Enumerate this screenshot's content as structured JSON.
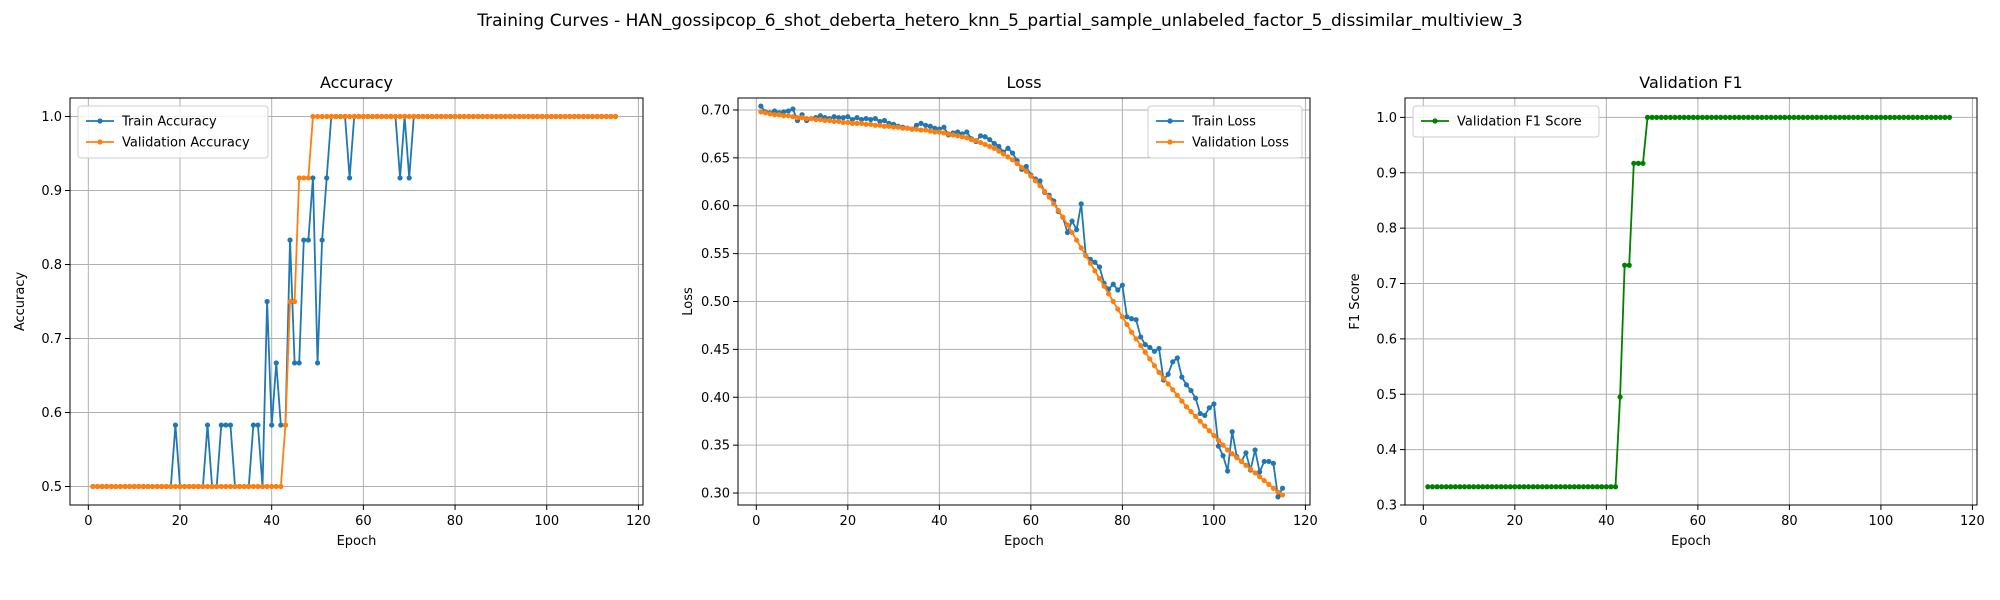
{
  "figure": {
    "suptitle": "Training Curves - HAN_gossipcop_6_shot_deberta_hetero_knn_5_partial_sample_unlabeled_factor_5_dissimilar_multiview_3"
  },
  "colors": {
    "blue": "#1f77b4",
    "orange": "#ff7f0e",
    "green": "#008000",
    "grid": "#b0b0b0"
  },
  "chart_data": [
    {
      "type": "line",
      "title": "Accuracy",
      "xlabel": "Epoch",
      "ylabel": "Accuracy",
      "xlim": [
        -4,
        121
      ],
      "ylim": [
        0.475,
        1.025
      ],
      "xticks": [
        0,
        20,
        40,
        60,
        80,
        100,
        120
      ],
      "yticks": [
        0.5,
        0.6,
        0.7,
        0.8,
        0.9,
        1.0
      ],
      "ytick_labels": [
        "0.5",
        "0.6",
        "0.7",
        "0.8",
        "0.9",
        "1.0"
      ],
      "grid": true,
      "legend": "upper-left",
      "series": [
        {
          "name": "Train Accuracy",
          "color": "#1f77b4",
          "x_start": 1,
          "values": [
            0.5,
            0.5,
            0.5,
            0.5,
            0.5,
            0.5,
            0.5,
            0.5,
            0.5,
            0.5,
            0.5,
            0.5,
            0.5,
            0.5,
            0.5,
            0.5,
            0.5,
            0.5,
            0.583,
            0.5,
            0.5,
            0.5,
            0.5,
            0.5,
            0.5,
            0.583,
            0.5,
            0.5,
            0.583,
            0.583,
            0.583,
            0.5,
            0.5,
            0.5,
            0.5,
            0.583,
            0.583,
            0.5,
            0.75,
            0.583,
            0.667,
            0.583,
            0.583,
            0.833,
            0.667,
            0.667,
            0.833,
            0.833,
            0.917,
            0.667,
            0.833,
            0.917,
            1.0,
            1.0,
            1.0,
            1.0,
            0.917,
            1.0,
            1.0,
            1.0,
            1.0,
            1.0,
            1.0,
            1.0,
            1.0,
            1.0,
            1.0,
            0.917,
            1.0,
            0.917,
            1.0,
            1.0,
            1.0,
            1.0,
            1.0,
            1.0,
            1.0,
            1.0,
            1.0,
            1.0,
            1.0,
            1.0,
            1.0,
            1.0,
            1.0,
            1.0,
            1.0,
            1.0,
            1.0,
            1.0,
            1.0,
            1.0,
            1.0,
            1.0,
            1.0,
            1.0,
            1.0,
            1.0,
            1.0,
            1.0,
            1.0,
            1.0,
            1.0,
            1.0,
            1.0,
            1.0,
            1.0,
            1.0,
            1.0,
            1.0,
            1.0,
            1.0,
            1.0,
            1.0,
            1.0
          ]
        },
        {
          "name": "Validation Accuracy",
          "color": "#ff7f0e",
          "x_start": 1,
          "values": [
            0.5,
            0.5,
            0.5,
            0.5,
            0.5,
            0.5,
            0.5,
            0.5,
            0.5,
            0.5,
            0.5,
            0.5,
            0.5,
            0.5,
            0.5,
            0.5,
            0.5,
            0.5,
            0.5,
            0.5,
            0.5,
            0.5,
            0.5,
            0.5,
            0.5,
            0.5,
            0.5,
            0.5,
            0.5,
            0.5,
            0.5,
            0.5,
            0.5,
            0.5,
            0.5,
            0.5,
            0.5,
            0.5,
            0.5,
            0.5,
            0.5,
            0.5,
            0.583,
            0.75,
            0.75,
            0.917,
            0.917,
            0.917,
            1.0,
            1.0,
            1.0,
            1.0,
            1.0,
            1.0,
            1.0,
            1.0,
            1.0,
            1.0,
            1.0,
            1.0,
            1.0,
            1.0,
            1.0,
            1.0,
            1.0,
            1.0,
            1.0,
            1.0,
            1.0,
            1.0,
            1.0,
            1.0,
            1.0,
            1.0,
            1.0,
            1.0,
            1.0,
            1.0,
            1.0,
            1.0,
            1.0,
            1.0,
            1.0,
            1.0,
            1.0,
            1.0,
            1.0,
            1.0,
            1.0,
            1.0,
            1.0,
            1.0,
            1.0,
            1.0,
            1.0,
            1.0,
            1.0,
            1.0,
            1.0,
            1.0,
            1.0,
            1.0,
            1.0,
            1.0,
            1.0,
            1.0,
            1.0,
            1.0,
            1.0,
            1.0,
            1.0,
            1.0,
            1.0,
            1.0,
            1.0
          ]
        }
      ]
    },
    {
      "type": "line",
      "title": "Loss",
      "xlabel": "Epoch",
      "ylabel": "Loss",
      "xlim": [
        -4,
        121
      ],
      "ylim": [
        0.2875,
        0.7125
      ],
      "xticks": [
        0,
        20,
        40,
        60,
        80,
        100,
        120
      ],
      "yticks": [
        0.3,
        0.35,
        0.4,
        0.45,
        0.5,
        0.55,
        0.6,
        0.65,
        0.7
      ],
      "ytick_labels": [
        "0.30",
        "0.35",
        "0.40",
        "0.45",
        "0.50",
        "0.55",
        "0.60",
        "0.65",
        "0.70"
      ],
      "grid": true,
      "legend": "upper-right",
      "series": [
        {
          "name": "Train Loss",
          "color": "#1f77b4",
          "x_start": 1,
          "values": [
            0.704,
            0.698,
            0.697,
            0.699,
            0.697,
            0.698,
            0.699,
            0.701,
            0.689,
            0.695,
            0.689,
            0.691,
            0.692,
            0.694,
            0.692,
            0.691,
            0.693,
            0.692,
            0.692,
            0.693,
            0.69,
            0.692,
            0.69,
            0.691,
            0.69,
            0.691,
            0.688,
            0.689,
            0.686,
            0.685,
            0.683,
            0.682,
            0.681,
            0.68,
            0.684,
            0.686,
            0.684,
            0.683,
            0.681,
            0.68,
            0.682,
            0.674,
            0.676,
            0.677,
            0.675,
            0.677,
            0.67,
            0.667,
            0.673,
            0.672,
            0.669,
            0.665,
            0.662,
            0.656,
            0.66,
            0.655,
            0.647,
            0.638,
            0.641,
            0.632,
            0.628,
            0.626,
            0.614,
            0.611,
            0.605,
            0.594,
            0.588,
            0.572,
            0.584,
            0.575,
            0.602,
            0.548,
            0.544,
            0.541,
            0.536,
            0.519,
            0.513,
            0.518,
            0.512,
            0.517,
            0.484,
            0.482,
            0.481,
            0.463,
            0.455,
            0.452,
            0.448,
            0.451,
            0.418,
            0.424,
            0.437,
            0.441,
            0.421,
            0.413,
            0.407,
            0.399,
            0.383,
            0.381,
            0.389,
            0.393,
            0.349,
            0.339,
            0.323,
            0.364,
            0.338,
            0.333,
            0.342,
            0.324,
            0.345,
            0.322,
            0.333,
            0.333,
            0.331,
            0.296,
            0.305
          ]
        },
        {
          "name": "Validation Loss",
          "color": "#ff7f0e",
          "x_start": 1,
          "values": [
            0.698,
            0.697,
            0.696,
            0.695,
            0.695,
            0.694,
            0.694,
            0.693,
            0.692,
            0.692,
            0.691,
            0.691,
            0.69,
            0.69,
            0.689,
            0.689,
            0.688,
            0.688,
            0.687,
            0.687,
            0.686,
            0.686,
            0.686,
            0.685,
            0.685,
            0.684,
            0.684,
            0.683,
            0.683,
            0.682,
            0.682,
            0.681,
            0.681,
            0.68,
            0.68,
            0.679,
            0.679,
            0.678,
            0.677,
            0.677,
            0.676,
            0.675,
            0.674,
            0.673,
            0.672,
            0.671,
            0.669,
            0.668,
            0.666,
            0.664,
            0.662,
            0.66,
            0.657,
            0.654,
            0.651,
            0.648,
            0.644,
            0.64,
            0.636,
            0.631,
            0.626,
            0.621,
            0.615,
            0.609,
            0.602,
            0.595,
            0.588,
            0.58,
            0.572,
            0.564,
            0.556,
            0.548,
            0.54,
            0.532,
            0.524,
            0.516,
            0.508,
            0.5,
            0.492,
            0.484,
            0.476,
            0.468,
            0.461,
            0.454,
            0.447,
            0.44,
            0.433,
            0.426,
            0.42,
            0.414,
            0.408,
            0.402,
            0.396,
            0.39,
            0.385,
            0.38,
            0.375,
            0.37,
            0.365,
            0.36,
            0.355,
            0.35,
            0.345,
            0.341,
            0.337,
            0.333,
            0.329,
            0.325,
            0.321,
            0.317,
            0.313,
            0.309,
            0.305,
            0.301,
            0.298
          ]
        }
      ]
    },
    {
      "type": "line",
      "title": "Validation F1",
      "xlabel": "Epoch",
      "ylabel": "F1 Score",
      "xlim": [
        -4,
        121
      ],
      "ylim": [
        0.3,
        1.035
      ],
      "xticks": [
        0,
        20,
        40,
        60,
        80,
        100,
        120
      ],
      "yticks": [
        0.3,
        0.4,
        0.5,
        0.6,
        0.7,
        0.8,
        0.9,
        1.0
      ],
      "ytick_labels": [
        "0.3",
        "0.4",
        "0.5",
        "0.6",
        "0.7",
        "0.8",
        "0.9",
        "1.0"
      ],
      "grid": true,
      "legend": "upper-left",
      "series": [
        {
          "name": "Validation F1 Score",
          "color": "#008000",
          "x_start": 1,
          "values": [
            0.333,
            0.333,
            0.333,
            0.333,
            0.333,
            0.333,
            0.333,
            0.333,
            0.333,
            0.333,
            0.333,
            0.333,
            0.333,
            0.333,
            0.333,
            0.333,
            0.333,
            0.333,
            0.333,
            0.333,
            0.333,
            0.333,
            0.333,
            0.333,
            0.333,
            0.333,
            0.333,
            0.333,
            0.333,
            0.333,
            0.333,
            0.333,
            0.333,
            0.333,
            0.333,
            0.333,
            0.333,
            0.333,
            0.333,
            0.333,
            0.333,
            0.333,
            0.495,
            0.733,
            0.733,
            0.917,
            0.917,
            0.917,
            1.0,
            1.0,
            1.0,
            1.0,
            1.0,
            1.0,
            1.0,
            1.0,
            1.0,
            1.0,
            1.0,
            1.0,
            1.0,
            1.0,
            1.0,
            1.0,
            1.0,
            1.0,
            1.0,
            1.0,
            1.0,
            1.0,
            1.0,
            1.0,
            1.0,
            1.0,
            1.0,
            1.0,
            1.0,
            1.0,
            1.0,
            1.0,
            1.0,
            1.0,
            1.0,
            1.0,
            1.0,
            1.0,
            1.0,
            1.0,
            1.0,
            1.0,
            1.0,
            1.0,
            1.0,
            1.0,
            1.0,
            1.0,
            1.0,
            1.0,
            1.0,
            1.0,
            1.0,
            1.0,
            1.0,
            1.0,
            1.0,
            1.0,
            1.0,
            1.0,
            1.0,
            1.0,
            1.0,
            1.0,
            1.0,
            1.0,
            1.0
          ]
        }
      ]
    }
  ]
}
